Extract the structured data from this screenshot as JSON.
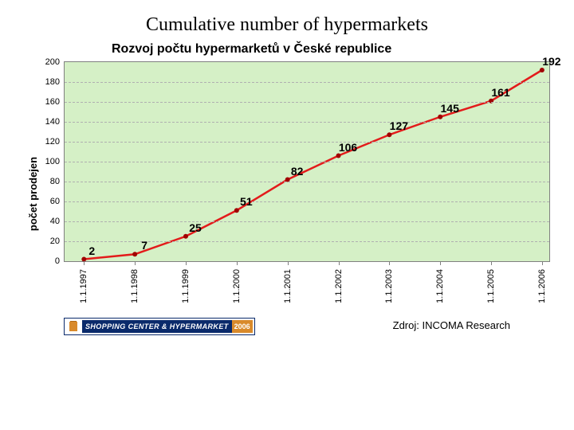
{
  "heading": "Cumulative number of hypermarkets",
  "chart": {
    "type": "line",
    "title": "Rozvoj počtu hypermarketů v České republice",
    "y_axis_title": "počet prodejen",
    "x_categories": [
      "1.1.1997",
      "1.1.1998",
      "1.1.1999",
      "1.1.2000",
      "1.1.2001",
      "1.1.2002",
      "1.1.2003",
      "1.1.2004",
      "1.1.2005",
      "1.1.2006"
    ],
    "values": [
      2,
      7,
      25,
      51,
      82,
      106,
      127,
      145,
      161,
      192
    ],
    "line_color": "#e31b1b",
    "line_width": 2.5,
    "marker_color": "#a00000",
    "marker_radius": 3,
    "plot_background": "#d5f0c6",
    "grid_color": "#b0b0b0",
    "axis_color": "#808080",
    "ylim": [
      0,
      200
    ],
    "ytick_step": 20,
    "label_fontsize": 11,
    "label_color": "#000000",
    "value_label_fontsize": 14,
    "value_label_weight": "bold"
  },
  "badge": {
    "text": "SHOPPING CENTER & HYPERMARKET",
    "year": "2006",
    "bg_color": "#0a2a6b",
    "year_bg": "#d98a2b",
    "text_color": "#ffffff"
  },
  "source_label": "Zdroj: INCOMA Research"
}
